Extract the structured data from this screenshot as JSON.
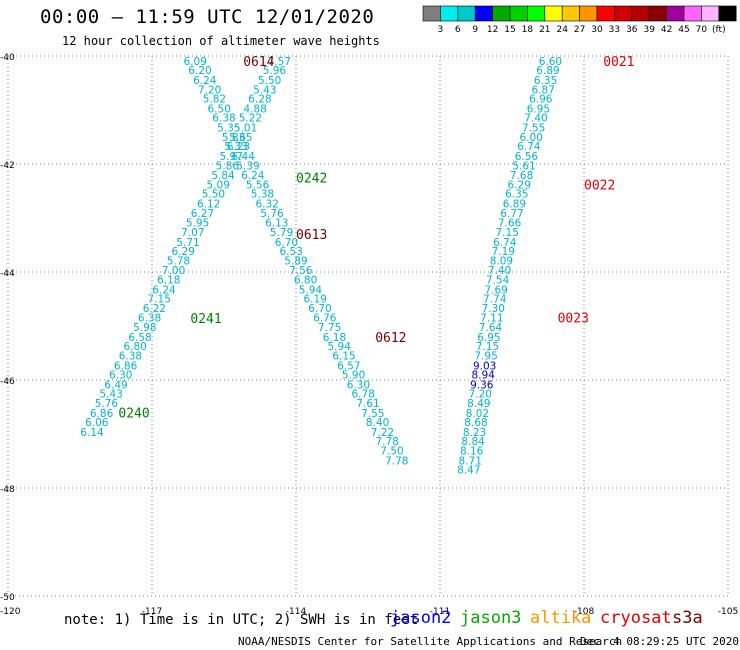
{
  "title": "00:00 – 11:59 UTC 12/01/2020",
  "subtitle": "12 hour collection of altimeter wave heights",
  "colors": {
    "grid": "#808080",
    "swh_cyan": "#00b4d2",
    "swh_blue": "#0000cc",
    "label_green": "#008200",
    "label_darkred": "#780000",
    "label_red": "#e60000"
  },
  "colorbar": {
    "unit": "(ft)",
    "colors": [
      "#7f7f7f",
      "#00eeee",
      "#00c8c8",
      "#0000ff",
      "#00aa00",
      "#00d200",
      "#00ff00",
      "#ffff00",
      "#ffc800",
      "#ff9600",
      "#ff0000",
      "#d20000",
      "#b40000",
      "#8c0000",
      "#a000a0",
      "#ff64ff",
      "#ffb4ff",
      "#000000"
    ],
    "ticks": [
      "3",
      "6",
      "9",
      "12",
      "15",
      "18",
      "21",
      "24",
      "27",
      "30",
      "33",
      "36",
      "39",
      "42",
      "45",
      "70"
    ]
  },
  "note": "note: 1) Time is in UTC; 2) SWH is in feet",
  "satellites": [
    {
      "name": "jason2",
      "color": "#0000ff"
    },
    {
      "name": "jason3",
      "color": "#00aa00"
    },
    {
      "name": "altika",
      "color": "#ff9600"
    },
    {
      "name": "cryosat",
      "color": "#e60000"
    },
    {
      "name": "s3a",
      "color": "#780000"
    }
  ],
  "footer": "NOAA/NESDIS Center for Satellite Applications and Research",
  "footer_time": "Dec  4 08:29:25 UTC 2020",
  "chart_data": {
    "type": "scatter",
    "title": "00:00 – 11:59 UTC 12/01/2020",
    "subtitle": "12 hour collection of altimeter wave heights",
    "xlim": [
      -120,
      -105
    ],
    "ylim": [
      -50,
      -40
    ],
    "x_ticks": [
      -120,
      -117,
      -114,
      -111,
      -108,
      -105
    ],
    "y_ticks": [
      -50,
      -48,
      -46,
      -44,
      -42,
      -40
    ],
    "grid": true,
    "tracks": [
      {
        "name": "track-1",
        "color": "#00b4d2",
        "points": [
          [
            -114.35,
            -40.09,
            "7.57"
          ],
          [
            -114.45,
            -40.26,
            "5.96"
          ],
          [
            -114.55,
            -40.44,
            "5.50"
          ],
          [
            -114.65,
            -40.62,
            "5.43"
          ],
          [
            -114.75,
            -40.79,
            "6.28"
          ],
          [
            -114.85,
            -40.97,
            "4.88"
          ],
          [
            -114.95,
            -41.14,
            "5.22"
          ],
          [
            -115.05,
            -41.32,
            "5.01"
          ],
          [
            -115.15,
            -41.5,
            "5.65"
          ],
          [
            -115.25,
            -41.67,
            "5.33"
          ],
          [
            -115.35,
            -41.85,
            "5.97"
          ],
          [
            -115.43,
            -42.03,
            "5.86"
          ],
          [
            -115.52,
            -42.2,
            "5.84"
          ],
          [
            -115.62,
            -42.38,
            "5.09"
          ],
          [
            -115.72,
            -42.55,
            "5.50"
          ],
          [
            -115.82,
            -42.73,
            "6.12"
          ],
          [
            -115.95,
            -42.91,
            "6.27"
          ],
          [
            -116.05,
            -43.08,
            "5.95"
          ],
          [
            -116.15,
            -43.26,
            "7.07"
          ],
          [
            -116.25,
            -43.44,
            "5.71"
          ],
          [
            -116.35,
            -43.61,
            "6.29"
          ],
          [
            -116.45,
            -43.79,
            "5.78"
          ],
          [
            -116.55,
            -43.96,
            "7.00"
          ],
          [
            -116.65,
            -44.14,
            "6.18"
          ],
          [
            -116.75,
            -44.32,
            "6.24"
          ],
          [
            -116.85,
            -44.49,
            "7.15"
          ],
          [
            -116.95,
            -44.67,
            "6.22"
          ],
          [
            -117.05,
            -44.84,
            "6.38"
          ],
          [
            -117.15,
            -45.02,
            "5.98"
          ],
          [
            -117.25,
            -45.2,
            "6.58"
          ],
          [
            -117.35,
            -45.37,
            "6.80"
          ],
          [
            -117.45,
            -45.55,
            "6.38"
          ],
          [
            -117.55,
            -45.73,
            "6.86"
          ],
          [
            -117.65,
            -45.9,
            "6.30"
          ],
          [
            -117.75,
            -46.08,
            "6.49"
          ],
          [
            -117.85,
            -46.25,
            "5.43"
          ],
          [
            -117.95,
            -46.43,
            "5.76"
          ],
          [
            -118.05,
            -46.61,
            "6.86"
          ],
          [
            -118.15,
            -46.78,
            "6.06"
          ],
          [
            -118.25,
            -46.96,
            "6.14"
          ]
        ]
      },
      {
        "name": "track-2",
        "color": "#00b4d2",
        "points": [
          [
            -116.1,
            -40.09,
            "6.09"
          ],
          [
            -116.0,
            -40.26,
            "6.20"
          ],
          [
            -115.9,
            -40.44,
            "6.24"
          ],
          [
            -115.8,
            -40.62,
            "7.20"
          ],
          [
            -115.7,
            -40.79,
            "5.82"
          ],
          [
            -115.6,
            -40.97,
            "6.50"
          ],
          [
            -115.5,
            -41.14,
            "6.38"
          ],
          [
            -115.4,
            -41.32,
            "5.35"
          ],
          [
            -115.3,
            -41.5,
            "5.83"
          ],
          [
            -115.2,
            -41.67,
            "6.23"
          ],
          [
            -115.1,
            -41.85,
            "6.44"
          ],
          [
            -115.0,
            -42.03,
            "5.39"
          ],
          [
            -114.9,
            -42.2,
            "6.24"
          ],
          [
            -114.8,
            -42.38,
            "5.56"
          ],
          [
            -114.7,
            -42.55,
            "5.38"
          ],
          [
            -114.6,
            -42.73,
            "6.32"
          ],
          [
            -114.5,
            -42.91,
            "5.76"
          ],
          [
            -114.4,
            -43.08,
            "6.13"
          ],
          [
            -114.3,
            -43.26,
            "5.79"
          ],
          [
            -114.2,
            -43.44,
            "6.70"
          ],
          [
            -114.1,
            -43.61,
            "6.53"
          ],
          [
            -114.0,
            -43.79,
            "5.89"
          ],
          [
            -113.9,
            -43.96,
            "7.56"
          ],
          [
            -113.8,
            -44.14,
            "6.80"
          ],
          [
            -113.7,
            -44.32,
            "5.94"
          ],
          [
            -113.6,
            -44.49,
            "6.19"
          ],
          [
            -113.5,
            -44.67,
            "6.70"
          ],
          [
            -113.4,
            -44.84,
            "6.76"
          ],
          [
            -113.3,
            -45.02,
            "7.75"
          ],
          [
            -113.2,
            -45.2,
            "6.18"
          ],
          [
            -113.1,
            -45.37,
            "5.94"
          ],
          [
            -113.0,
            -45.55,
            "6.15"
          ],
          [
            -112.9,
            -45.73,
            "6.57"
          ],
          [
            -112.8,
            -45.9,
            "5.90"
          ],
          [
            -112.7,
            -46.08,
            "6.30"
          ],
          [
            -112.6,
            -46.25,
            "6.78"
          ],
          [
            -112.5,
            -46.43,
            "7.61"
          ],
          [
            -112.4,
            -46.61,
            "7.55"
          ],
          [
            -112.3,
            -46.78,
            "8.40"
          ],
          [
            -112.2,
            -46.96,
            "7.22"
          ],
          [
            -112.1,
            -47.13,
            "7.78"
          ],
          [
            -112.0,
            -47.31,
            "7.50"
          ],
          [
            -111.9,
            -47.49,
            "7.78"
          ]
        ]
      },
      {
        "name": "track-3",
        "color": "#00b4d2",
        "points": [
          [
            -108.7,
            -40.09,
            "6.60"
          ],
          [
            -108.75,
            -40.26,
            "6.89"
          ],
          [
            -108.8,
            -40.44,
            "6.35"
          ],
          [
            -108.85,
            -40.62,
            "6.87"
          ],
          [
            -108.9,
            -40.79,
            "6.96"
          ],
          [
            -108.95,
            -40.97,
            "6.95"
          ],
          [
            -109.0,
            -41.14,
            "7.40"
          ],
          [
            -109.05,
            -41.32,
            "7.55"
          ],
          [
            -109.1,
            -41.5,
            "6.00"
          ],
          [
            -109.15,
            -41.67,
            "6.74"
          ],
          [
            -109.2,
            -41.85,
            "6.56"
          ],
          [
            -109.25,
            -42.03,
            "5.61"
          ],
          [
            -109.3,
            -42.2,
            "7.68"
          ],
          [
            -109.35,
            -42.38,
            "6.29"
          ],
          [
            -109.4,
            -42.55,
            "6.35"
          ],
          [
            -109.45,
            -42.73,
            "6.89"
          ],
          [
            -109.5,
            -42.91,
            "6.77"
          ],
          [
            -109.55,
            -43.08,
            "7.66"
          ],
          [
            -109.6,
            -43.26,
            "7.15"
          ],
          [
            -109.65,
            -43.44,
            "6.74"
          ],
          [
            -109.68,
            -43.61,
            "7.19"
          ],
          [
            -109.72,
            -43.79,
            "8.09"
          ],
          [
            -109.76,
            -43.96,
            "7.40"
          ],
          [
            -109.8,
            -44.14,
            "7.54"
          ],
          [
            -109.83,
            -44.32,
            "7.69"
          ],
          [
            -109.86,
            -44.49,
            "7.74"
          ],
          [
            -109.89,
            -44.67,
            "7.30"
          ],
          [
            -109.92,
            -44.84,
            "7.11"
          ],
          [
            -109.95,
            -45.02,
            "7.64"
          ],
          [
            -109.98,
            -45.2,
            "6.95"
          ],
          [
            -110.01,
            -45.37,
            "7.15"
          ],
          [
            -110.04,
            -45.55,
            "7.95"
          ],
          [
            -110.07,
            -45.73,
            "9.03"
          ],
          [
            -110.1,
            -45.9,
            "8.94"
          ],
          [
            -110.13,
            -46.08,
            "9.36"
          ],
          [
            -110.16,
            -46.25,
            "7.20"
          ],
          [
            -110.19,
            -46.43,
            "8.49"
          ],
          [
            -110.22,
            -46.61,
            "8.02"
          ],
          [
            -110.25,
            -46.78,
            "8.68"
          ],
          [
            -110.28,
            -46.96,
            "8.23"
          ],
          [
            -110.31,
            -47.13,
            "8.84"
          ],
          [
            -110.34,
            -47.31,
            "8.16"
          ],
          [
            -110.37,
            -47.49,
            "8.71"
          ],
          [
            -110.4,
            -47.66,
            "8.47"
          ]
        ]
      }
    ],
    "dark_blue_values": [
      "9.03",
      "8.94",
      "9.36"
    ],
    "time_labels": [
      {
        "text": "0614",
        "x": -115.1,
        "y": -40.09,
        "color": "#780000"
      },
      {
        "text": "0242",
        "x": -114.0,
        "y": -42.25,
        "color": "#008200"
      },
      {
        "text": "0613",
        "x": -114.0,
        "y": -43.3,
        "color": "#780000"
      },
      {
        "text": "0241",
        "x": -116.2,
        "y": -44.85,
        "color": "#008200"
      },
      {
        "text": "0240",
        "x": -117.7,
        "y": -46.6,
        "color": "#008200"
      },
      {
        "text": "0612",
        "x": -112.35,
        "y": -45.2,
        "color": "#780000"
      },
      {
        "text": "0021",
        "x": -107.6,
        "y": -40.09,
        "color": "#e60000"
      },
      {
        "text": "0022",
        "x": -108.0,
        "y": -42.38,
        "color": "#e60000"
      },
      {
        "text": "0023",
        "x": -108.55,
        "y": -44.84,
        "color": "#e60000"
      }
    ]
  }
}
